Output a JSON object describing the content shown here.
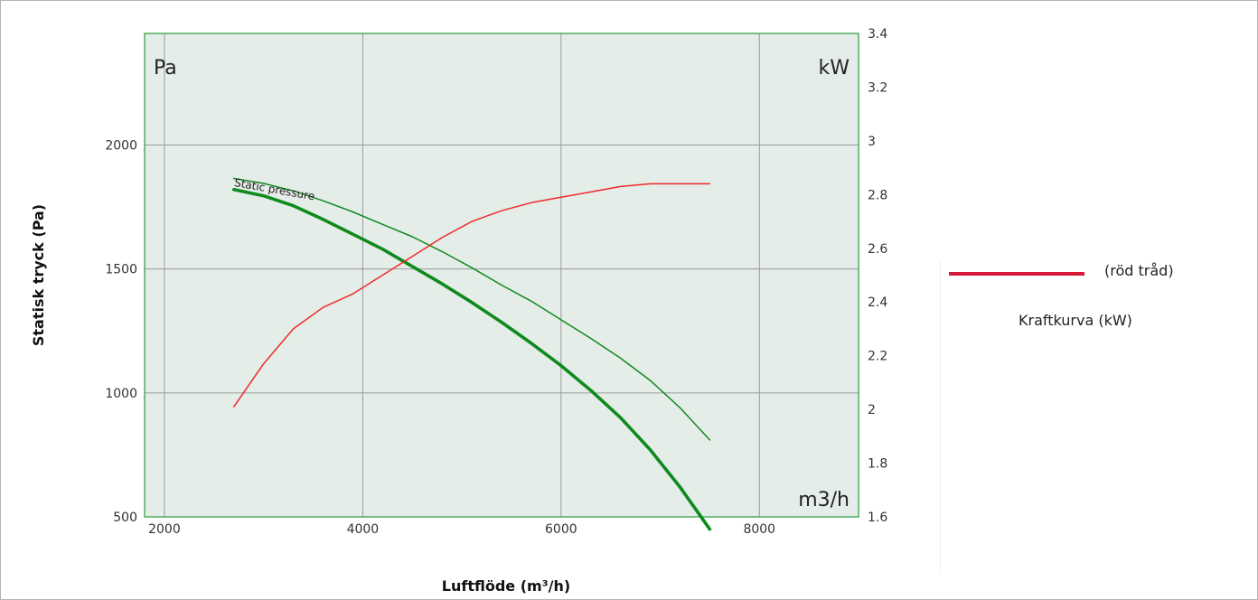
{
  "chart_data": {
    "type": "line",
    "x_axis": {
      "label": "Luftflöde (m³/h)",
      "range": [
        1800,
        9000
      ],
      "ticks": [
        2000,
        4000,
        6000,
        8000
      ],
      "tick_labels": [
        "2000",
        "4000",
        "6000",
        "8000"
      ]
    },
    "y_axis_left": {
      "label": "Statisk tryck (Pa)",
      "range": [
        500,
        2450
      ],
      "ticks": [
        500,
        1000,
        1500,
        2000
      ],
      "tick_labels": [
        "500",
        "1000",
        "1500",
        "2000"
      ]
    },
    "y_axis_right": {
      "range": [
        1.6,
        3.4
      ],
      "ticks": [
        1.6,
        1.8,
        2.0,
        2.2,
        2.4,
        2.6,
        2.8,
        3.0,
        3.2,
        3.4
      ],
      "tick_labels": [
        "1.6",
        "1.8",
        "2",
        "2.2",
        "2.4",
        "2.6",
        "2.8",
        "3",
        "3.2",
        "3.4"
      ]
    },
    "in_plot_labels": {
      "left_unit": "Pa",
      "right_unit": "kW",
      "x_unit": "m3/h"
    },
    "grid": true,
    "series": [
      {
        "name": "Static pressure",
        "axis": "left",
        "color": "#0f8a1e",
        "width": "thick",
        "x": [
          2700,
          3000,
          3300,
          3600,
          3900,
          4200,
          4500,
          4800,
          5100,
          5400,
          5700,
          6000,
          6300,
          6600,
          6900,
          7200,
          7500
        ],
        "y": [
          1820,
          1795,
          1755,
          1700,
          1640,
          1580,
          1510,
          1440,
          1365,
          1285,
          1200,
          1110,
          1010,
          900,
          770,
          620,
          450
        ]
      },
      {
        "axis": "left",
        "color": "#0f8a1e",
        "width": "thin",
        "x": [
          2700,
          3000,
          3300,
          3600,
          3900,
          4200,
          4500,
          4800,
          5100,
          5400,
          5700,
          6000,
          6300,
          6600,
          6900,
          7200,
          7500
        ],
        "y": [
          1865,
          1845,
          1815,
          1775,
          1730,
          1680,
          1630,
          1570,
          1505,
          1435,
          1370,
          1295,
          1220,
          1140,
          1050,
          940,
          810
        ]
      },
      {
        "axis": "right",
        "color": "#ee2a2a",
        "width": "thin",
        "x": [
          2700,
          3000,
          3300,
          3600,
          3900,
          4200,
          4500,
          4800,
          5100,
          5400,
          5700,
          6000,
          6300,
          6600,
          6900,
          7200,
          7500
        ],
        "y": [
          2.01,
          2.17,
          2.3,
          2.38,
          2.43,
          2.5,
          2.57,
          2.64,
          2.7,
          2.74,
          2.77,
          2.79,
          2.81,
          2.83,
          2.84,
          2.84,
          2.84
        ]
      }
    ],
    "legend": {
      "placement": "right",
      "swatch_color": "#d7193a",
      "swatch_text": "(röd tråd)",
      "description": "Kraftkurva (kW)"
    }
  }
}
